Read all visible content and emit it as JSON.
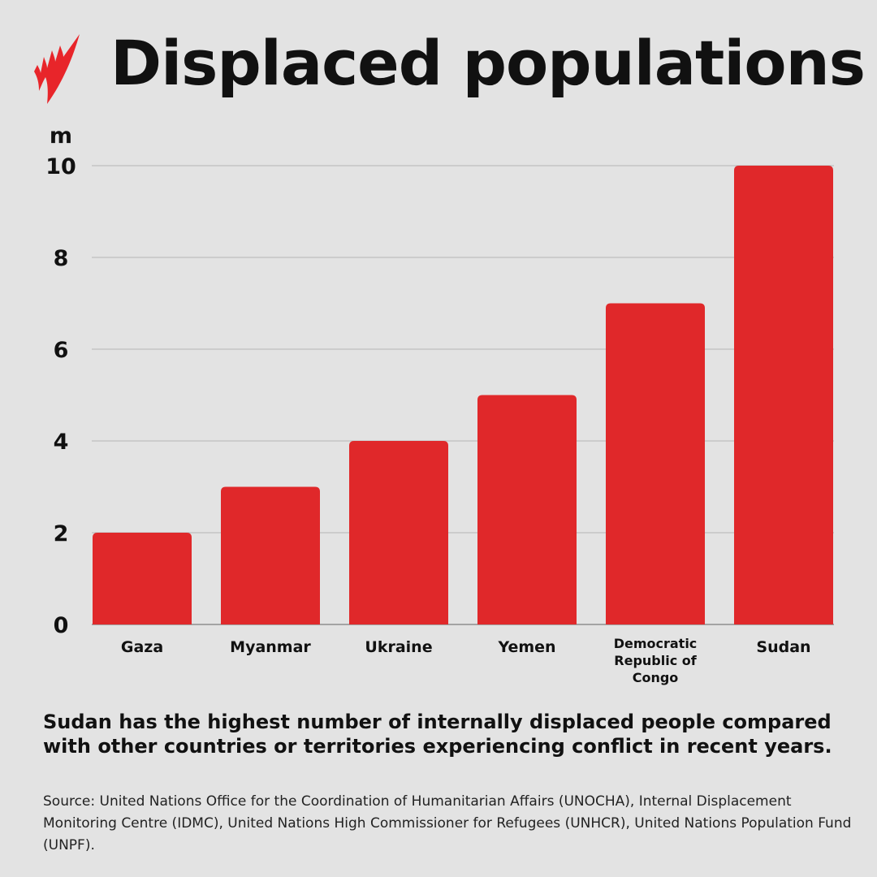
{
  "header": {
    "title": "Displaced populations",
    "logo": "broadcaster-logo-red"
  },
  "chart_data": {
    "type": "bar",
    "title": "Displaced populations",
    "ylabel": "m",
    "xlabel": "",
    "categories": [
      "Gaza",
      "Myanmar",
      "Ukraine",
      "Yemen",
      "Democratic Republic of Congo",
      "Sudan"
    ],
    "category_lines": [
      [
        "Gaza"
      ],
      [
        "Myanmar"
      ],
      [
        "Ukraine"
      ],
      [
        "Yemen"
      ],
      [
        "Democratic",
        "Republic of",
        "Congo"
      ],
      [
        "Sudan"
      ]
    ],
    "values": [
      2,
      3,
      4,
      5,
      7,
      10
    ],
    "ylim": [
      0,
      10
    ],
    "yticks": [
      0,
      2,
      4,
      6,
      8,
      10
    ],
    "grid": true,
    "bar_color": "#e0282a",
    "background_color": "#e3e3e3"
  },
  "summary": "Sudan has the highest number of internally displaced people compared with other countries or territories experiencing conflict in recent years.",
  "source": "Source: United Nations Office for the Coordination of Humanitarian Affairs (UNOCHA), Internal Displacement Monitoring Centre (IDMC), United Nations High Commissioner for Refugees (UNHCR), United Nations Population Fund (UNPF)."
}
